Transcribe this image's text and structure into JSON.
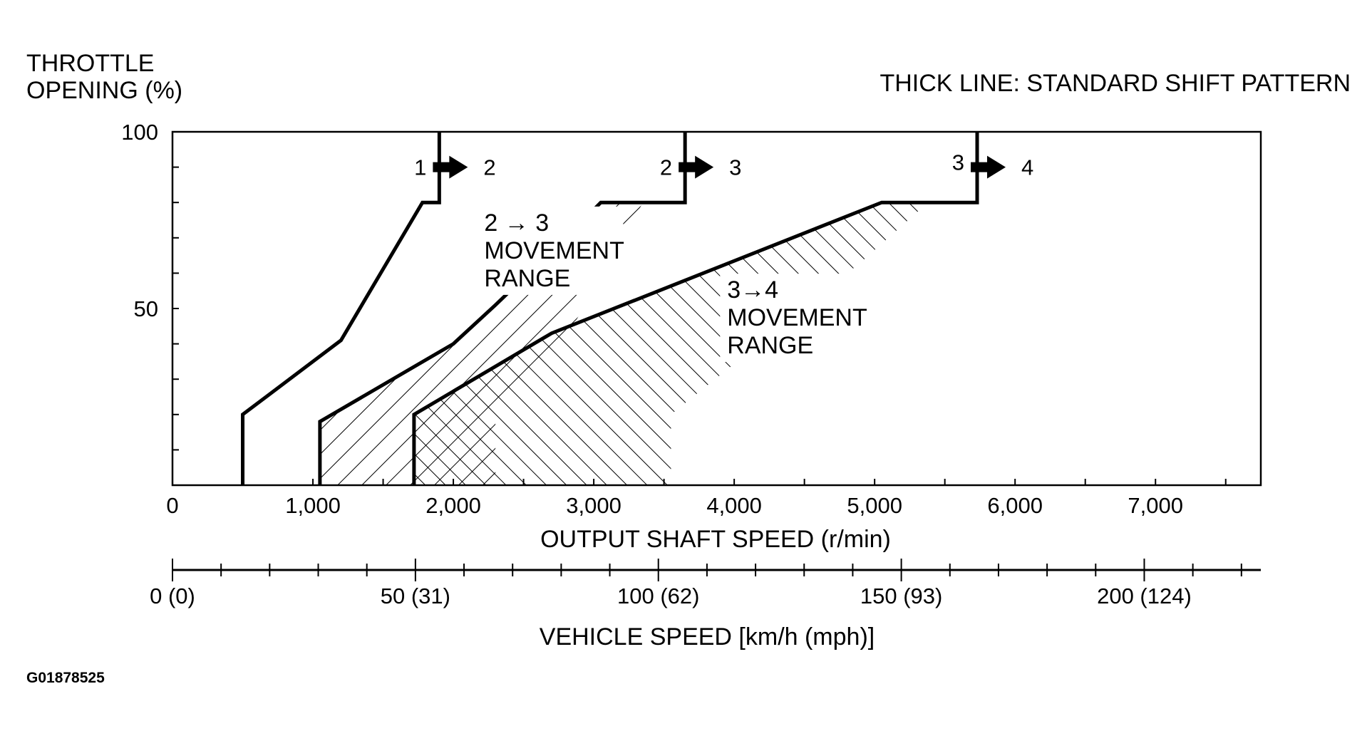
{
  "figure_code": "G01878525",
  "y_axis_title_line1": "THROTTLE",
  "y_axis_title_line2": "OPENING (%)",
  "legend_note": "THICK LINE: STANDARD SHIFT PATTERN",
  "chart_data": {
    "type": "line",
    "xlabel": "OUTPUT SHAFT SPEED (r/min)",
    "ylabel": "THROTTLE OPENING (%)",
    "xlim": [
      0,
      7750
    ],
    "ylim": [
      0,
      100
    ],
    "x_ticks": [
      0,
      1000,
      2000,
      3000,
      4000,
      5000,
      6000,
      7000
    ],
    "x_tick_labels": [
      "0",
      "1,000",
      "2,000",
      "3,000",
      "4,000",
      "5,000",
      "6,000",
      "7,000"
    ],
    "y_ticks": [
      50,
      100
    ],
    "y_tick_labels": [
      "50",
      "100"
    ],
    "secondary_axis": {
      "label": "VEHICLE SPEED [km/h (mph)]",
      "ticks": [
        0,
        50,
        100,
        150,
        200
      ],
      "tick_labels": [
        "0 (0)",
        "50 (31)",
        "100 (62)",
        "150 (93)",
        "200 (124)"
      ],
      "rpm_per_kmh": 34.6
    },
    "shift_lines": [
      {
        "name": "1 → 2",
        "from": "1",
        "to": "2",
        "x": [
          500,
          500,
          1200,
          1780,
          1900,
          1900
        ],
        "y": [
          0,
          20,
          41,
          80,
          80,
          100
        ]
      },
      {
        "name": "2 → 3",
        "from": "2",
        "to": "3",
        "x": [
          1050,
          1050,
          2000,
          2300,
          2850,
          3050,
          3650,
          3650
        ],
        "y": [
          0,
          18,
          40,
          51,
          72,
          80,
          80,
          100
        ]
      },
      {
        "name": "3 → 4",
        "from": "3",
        "to": "4",
        "x": [
          1720,
          1720,
          2700,
          5050,
          5730,
          5730
        ],
        "y": [
          0,
          20,
          43,
          80,
          80,
          100
        ]
      }
    ],
    "movement_ranges": [
      {
        "label": [
          "2 → 3",
          "MOVEMENT",
          "RANGE"
        ],
        "boundary_x": [
          1050,
          1050,
          2000,
          2300,
          2850,
          3050,
          3350,
          2780,
          2600,
          2300,
          2300
        ],
        "boundary_y": [
          0,
          18,
          40,
          51,
          72,
          80,
          80,
          40,
          35,
          18,
          0
        ]
      },
      {
        "label": [
          "3→4",
          "MOVEMENT",
          "RANGE"
        ],
        "boundary_x": [
          1720,
          1720,
          2700,
          5050,
          5380,
          4900,
          3550,
          3550
        ],
        "boundary_y": [
          0,
          20,
          43,
          80,
          80,
          63,
          20,
          0
        ]
      }
    ]
  }
}
